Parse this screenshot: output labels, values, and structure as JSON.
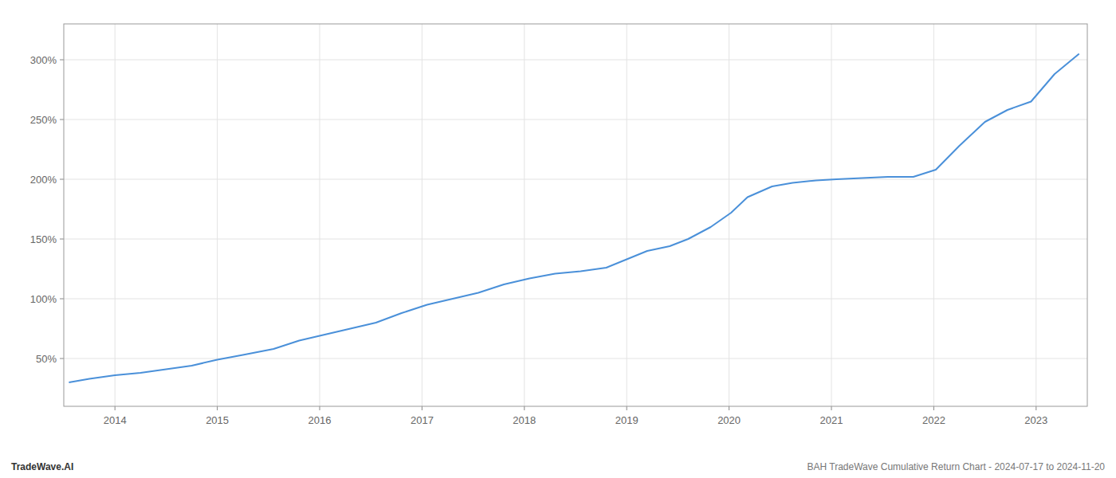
{
  "chart_data": {
    "type": "line",
    "x": [
      2013.55,
      2013.75,
      2014.0,
      2014.25,
      2014.5,
      2014.75,
      2015.0,
      2015.25,
      2015.55,
      2015.8,
      2016.05,
      2016.3,
      2016.55,
      2016.8,
      2017.05,
      2017.3,
      2017.55,
      2017.8,
      2018.05,
      2018.3,
      2018.55,
      2018.8,
      2019.0,
      2019.2,
      2019.42,
      2019.6,
      2019.82,
      2020.02,
      2020.18,
      2020.42,
      2020.62,
      2020.85,
      2021.05,
      2021.3,
      2021.55,
      2021.8,
      2022.02,
      2022.25,
      2022.5,
      2022.72,
      2022.95,
      2023.18,
      2023.42
    ],
    "values": [
      30,
      33,
      36,
      38,
      41,
      44,
      49,
      53,
      58,
      65,
      70,
      75,
      80,
      88,
      95,
      100,
      105,
      112,
      117,
      121,
      123,
      126,
      133,
      140,
      144,
      150,
      160,
      172,
      185,
      194,
      197,
      199,
      200,
      201,
      202,
      202,
      208,
      228,
      248,
      258,
      265,
      288,
      305
    ],
    "color": "#4a90d9",
    "xlim": [
      2013.5,
      2023.5
    ],
    "ylim": [
      10,
      330
    ],
    "xticks": [
      2014,
      2015,
      2016,
      2017,
      2018,
      2019,
      2020,
      2021,
      2022,
      2023
    ],
    "yticks": [
      {
        "value": 50,
        "label": "50%"
      },
      {
        "value": 100,
        "label": "100%"
      },
      {
        "value": 150,
        "label": "150%"
      },
      {
        "value": 200,
        "label": "200%"
      },
      {
        "value": 250,
        "label": "250%"
      },
      {
        "value": 300,
        "label": "300%"
      }
    ],
    "grid": true,
    "annotations": [
      "TradeWave.AI",
      "BAH TradeWave Cumulative Return Chart - 2024-07-17 to 2024-11-20"
    ]
  }
}
